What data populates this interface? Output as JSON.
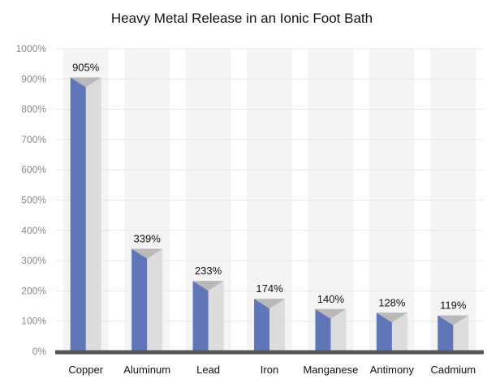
{
  "chart_data": {
    "type": "bar",
    "title": "Heavy Metal Release in an Ionic Foot Bath",
    "categories": [
      "Copper",
      "Aluminum",
      "Lead",
      "Iron",
      "Manganese",
      "Antimony",
      "Cadmium"
    ],
    "values": [
      905,
      339,
      233,
      174,
      140,
      128,
      119
    ],
    "data_labels": [
      "905%",
      "339%",
      "233%",
      "174%",
      "140%",
      "128%",
      "119%"
    ],
    "ylim": [
      0,
      1000
    ],
    "yticks": [
      0,
      100,
      200,
      300,
      400,
      500,
      600,
      700,
      800,
      900,
      1000
    ],
    "ytick_labels": [
      "0%",
      "100%",
      "200%",
      "300%",
      "400%",
      "500%",
      "600%",
      "700%",
      "800%",
      "900%",
      "1000%"
    ],
    "grid": true,
    "legend": "none",
    "colors": {
      "bar_front": "#5f77b8",
      "bar_side": "#dcdcdc",
      "bar_top": "#b9b9b9",
      "axis": "#555555",
      "grid": "#e6e6e6",
      "column_band": "#f4f4f4"
    }
  }
}
